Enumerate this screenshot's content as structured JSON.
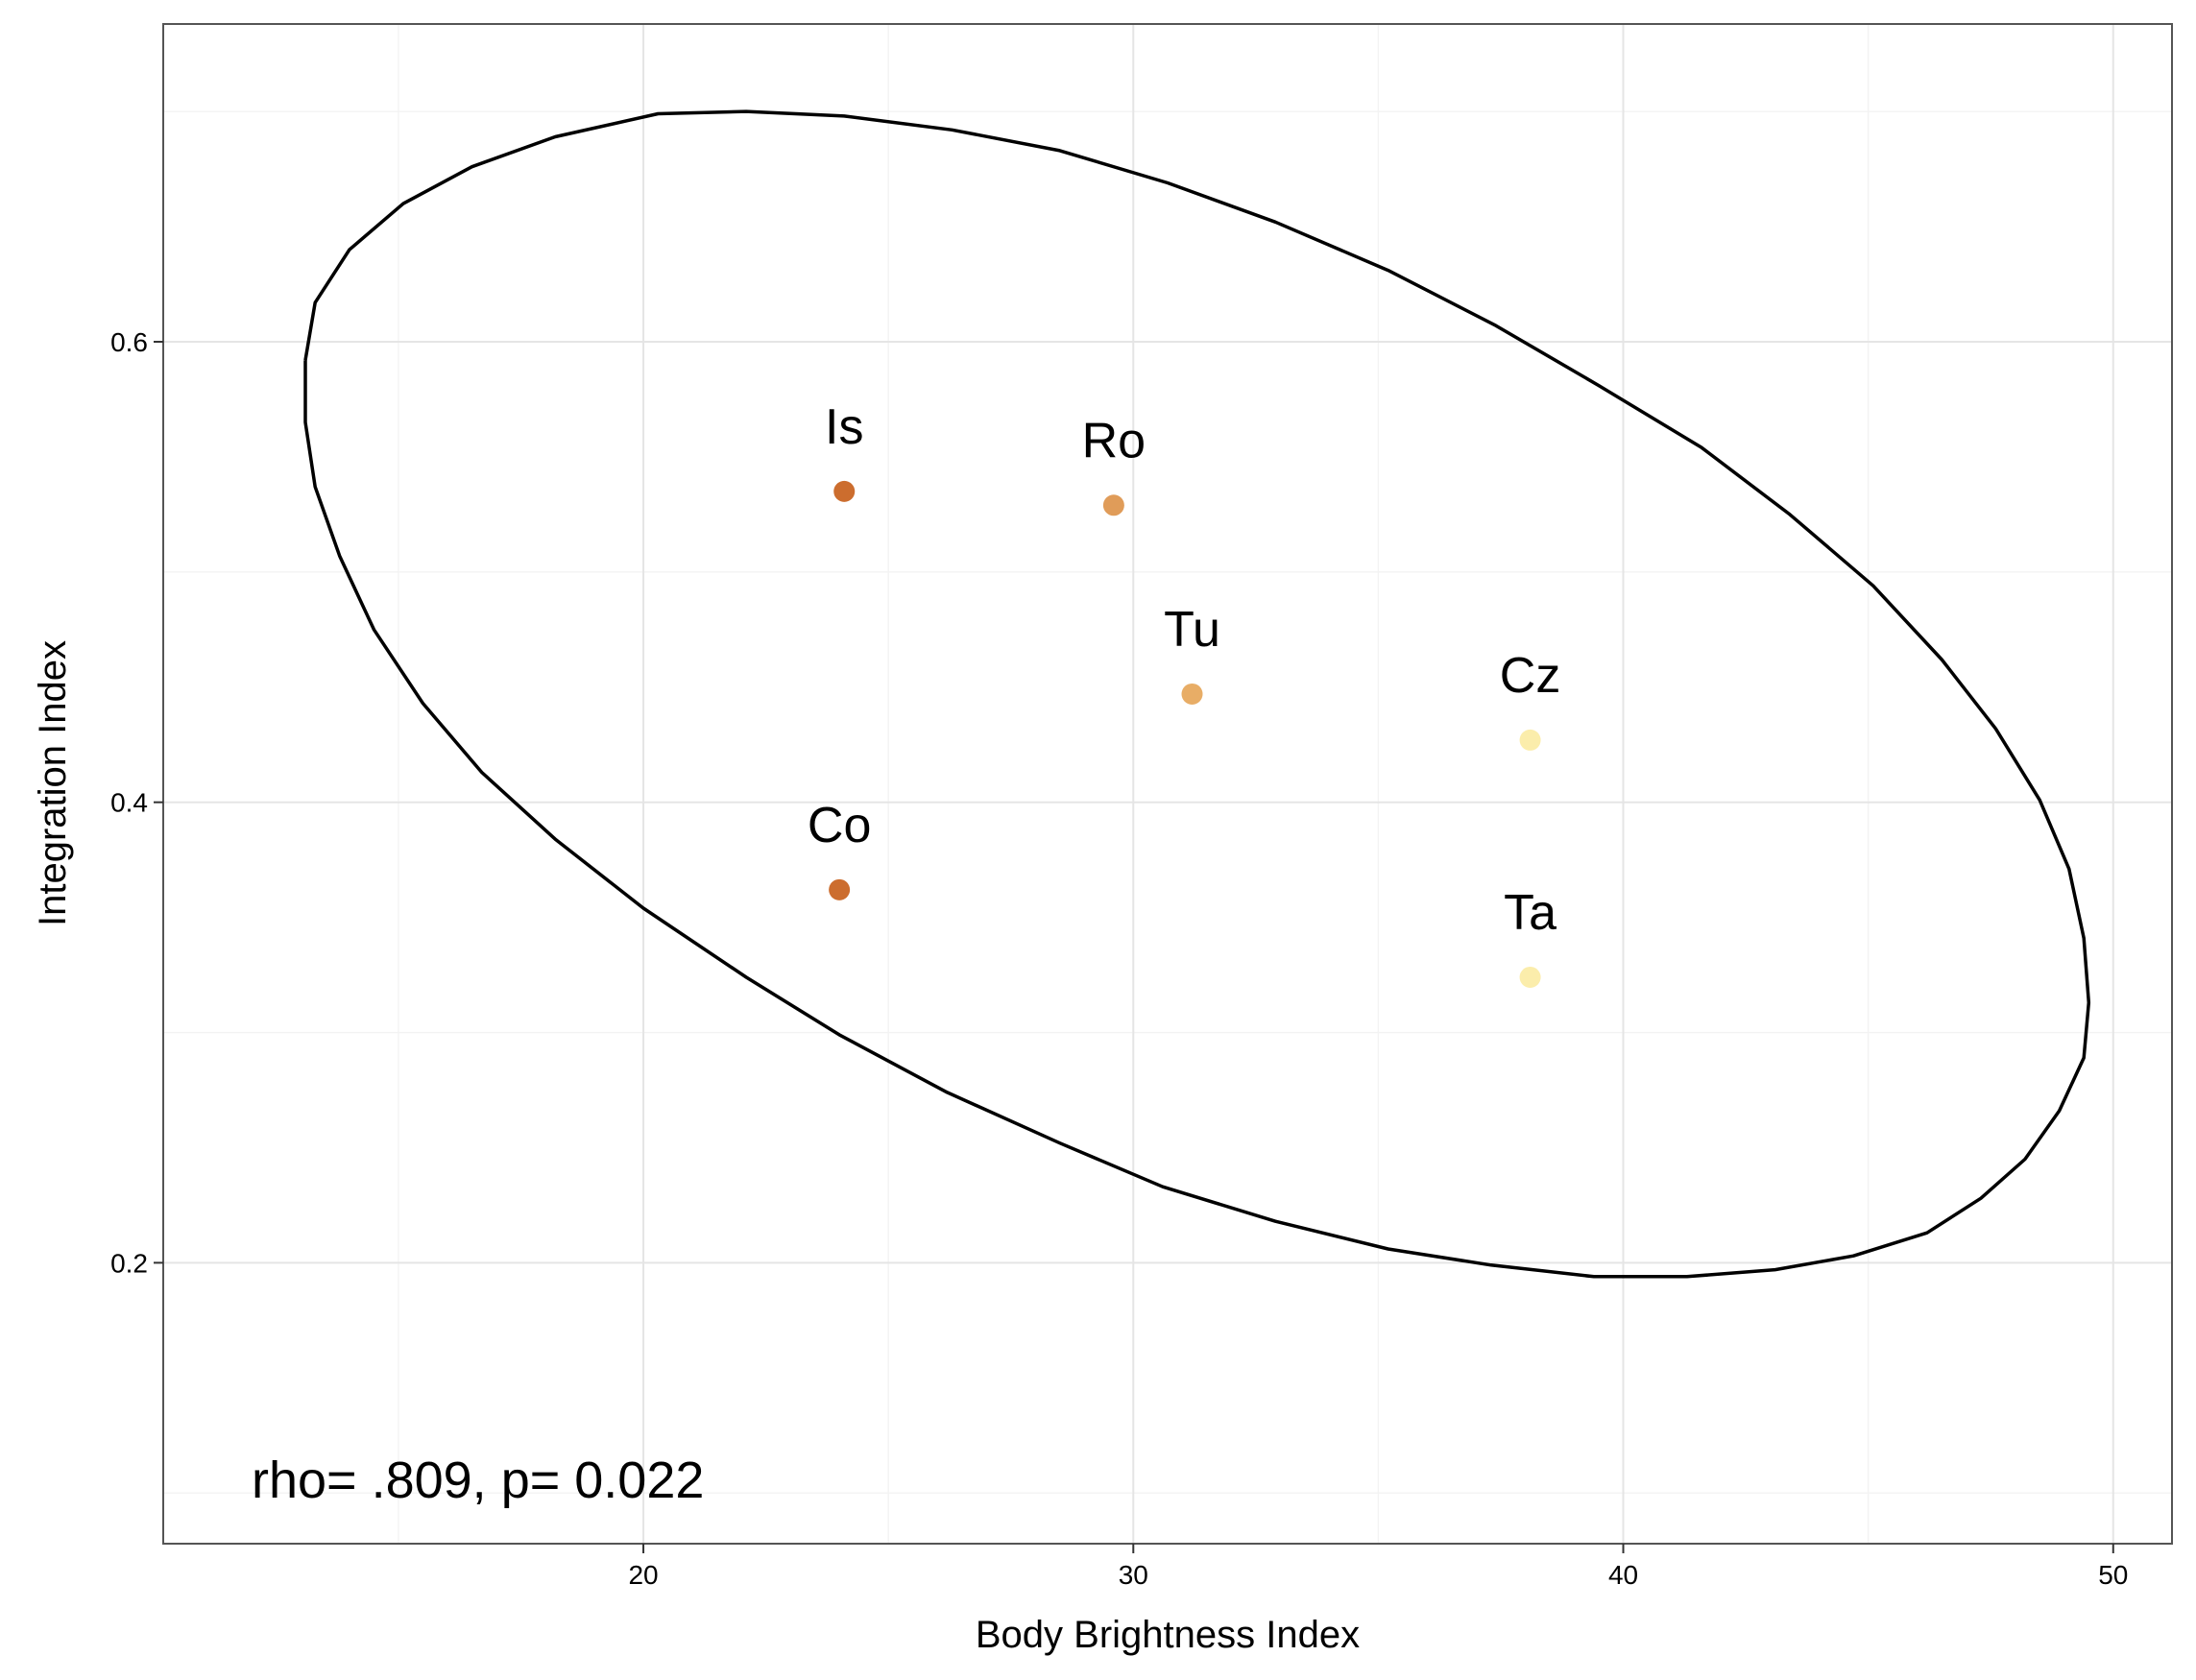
{
  "chart_data": {
    "type": "scatter",
    "xlabel": "Body Brightness Index",
    "ylabel": "Integration Index",
    "xlim": [
      10.2,
      51.2
    ],
    "ylim": [
      0.078,
      0.738
    ],
    "x_ticks": [
      20,
      30,
      40,
      50
    ],
    "x_tick_labels": [
      "20",
      "30",
      "40",
      "50"
    ],
    "y_ticks": [
      0.2,
      0.4,
      0.6
    ],
    "y_tick_labels": [
      "0.2",
      "0.4",
      "0.6"
    ],
    "grid": true,
    "points": [
      {
        "label": "Is",
        "x": 24.1,
        "y": 0.535,
        "color": "#cc6d2e"
      },
      {
        "label": "Ro",
        "x": 29.6,
        "y": 0.529,
        "color": "#e09c59"
      },
      {
        "label": "Tu",
        "x": 31.2,
        "y": 0.447,
        "color": "#e8ad66"
      },
      {
        "label": "Cz",
        "x": 38.1,
        "y": 0.427,
        "color": "#fbedab"
      },
      {
        "label": "Co",
        "x": 24.0,
        "y": 0.362,
        "color": "#cc6d2e"
      },
      {
        "label": "Ta",
        "x": 38.1,
        "y": 0.324,
        "color": "#fbedab"
      }
    ],
    "ellipse": [
      [
        13.1,
        0.592
      ],
      [
        13.3,
        0.617
      ],
      [
        14.0,
        0.64
      ],
      [
        15.1,
        0.66
      ],
      [
        16.5,
        0.676
      ],
      [
        18.2,
        0.689
      ],
      [
        20.3,
        0.699
      ],
      [
        22.1,
        0.7
      ],
      [
        24.1,
        0.698
      ],
      [
        26.3,
        0.692
      ],
      [
        28.5,
        0.683
      ],
      [
        30.7,
        0.669
      ],
      [
        32.9,
        0.652
      ],
      [
        35.2,
        0.631
      ],
      [
        37.4,
        0.607
      ],
      [
        39.5,
        0.581
      ],
      [
        41.6,
        0.554
      ],
      [
        43.4,
        0.525
      ],
      [
        45.1,
        0.494
      ],
      [
        46.5,
        0.462
      ],
      [
        47.6,
        0.432
      ],
      [
        48.5,
        0.401
      ],
      [
        49.1,
        0.371
      ],
      [
        49.4,
        0.341
      ],
      [
        49.5,
        0.313
      ],
      [
        49.4,
        0.289
      ],
      [
        48.9,
        0.266
      ],
      [
        48.2,
        0.245
      ],
      [
        47.3,
        0.228
      ],
      [
        46.2,
        0.213
      ],
      [
        44.7,
        0.203
      ],
      [
        43.1,
        0.197
      ],
      [
        41.3,
        0.194
      ],
      [
        39.4,
        0.194
      ],
      [
        37.3,
        0.199
      ],
      [
        35.2,
        0.206
      ],
      [
        32.9,
        0.218
      ],
      [
        30.6,
        0.233
      ],
      [
        28.5,
        0.252
      ],
      [
        26.2,
        0.274
      ],
      [
        24.0,
        0.299
      ],
      [
        22.1,
        0.324
      ],
      [
        20.0,
        0.354
      ],
      [
        18.2,
        0.384
      ],
      [
        16.7,
        0.413
      ],
      [
        15.5,
        0.443
      ],
      [
        14.5,
        0.475
      ],
      [
        13.8,
        0.507
      ],
      [
        13.3,
        0.537
      ],
      [
        13.1,
        0.565
      ],
      [
        13.1,
        0.592
      ]
    ],
    "annotation": "rho= .809, p= 0.022"
  }
}
